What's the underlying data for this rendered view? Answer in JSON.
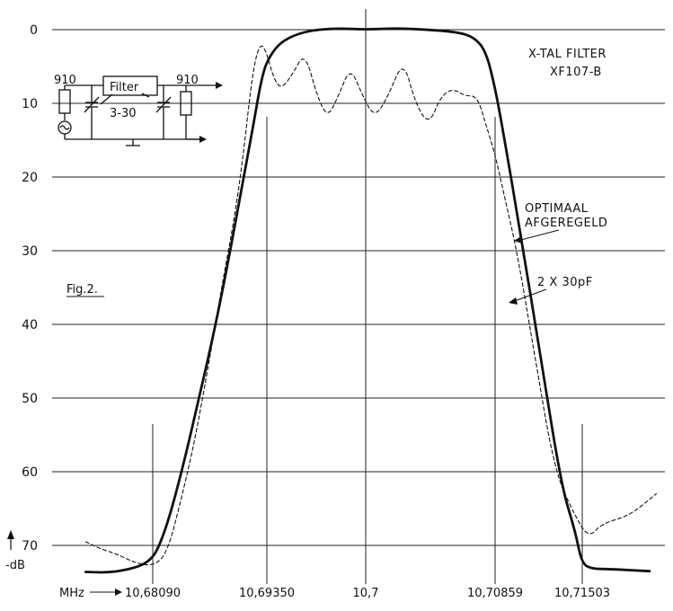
{
  "chart_data": {
    "type": "line",
    "title": "X-TAL FILTER",
    "subtitle": "XF107-B",
    "figure_label": "Fig.2.",
    "x_unit_label": "MHz",
    "y_unit_label": "-dB",
    "x_ticks": [
      {
        "value": 10.6809,
        "label": "10,68090"
      },
      {
        "value": 10.6935,
        "label": "10,69350"
      },
      {
        "value": 10.7,
        "label": "10,7"
      },
      {
        "value": 10.70859,
        "label": "10,70859"
      },
      {
        "value": 10.71503,
        "label": "10,71503"
      }
    ],
    "y_ticks": [
      {
        "value": 0,
        "label": "0"
      },
      {
        "value": 10,
        "label": "10"
      },
      {
        "value": 20,
        "label": "20"
      },
      {
        "value": 30,
        "label": "30"
      },
      {
        "value": 40,
        "label": "40"
      },
      {
        "value": 50,
        "label": "50"
      },
      {
        "value": 60,
        "label": "60"
      },
      {
        "value": 70,
        "label": "70"
      }
    ],
    "ylim": [
      0,
      73
    ],
    "y_inverted": true,
    "grid": true,
    "series": [
      {
        "name": "OPTIMAAL AFGEREGELD",
        "style": "solid",
        "x": [
          10.6735,
          10.676,
          10.678,
          10.6795,
          10.6806,
          10.6815,
          10.6828,
          10.6845,
          10.686,
          10.6875,
          10.689,
          10.6905,
          10.692,
          10.693,
          10.6937,
          10.6945,
          10.696,
          10.698,
          10.7,
          10.702,
          10.704,
          10.706,
          10.7072,
          10.708,
          10.7086,
          10.7092,
          10.7105,
          10.712,
          10.7135,
          10.7145,
          10.715,
          10.7158,
          10.717,
          10.72
        ],
        "y": [
          73.6,
          73.7,
          73.3,
          72.8,
          72,
          70.5,
          66,
          58,
          50,
          42,
          33,
          23,
          13,
          6,
          3.5,
          1.5,
          0.2,
          -0.2,
          0,
          -0.2,
          0,
          0.3,
          1,
          3,
          8,
          14,
          28,
          45,
          62,
          68,
          72.5,
          73.2,
          73.2,
          73.5
        ]
      },
      {
        "name": "2 X 30pF",
        "style": "dashed",
        "x": [
          10.6735,
          10.675,
          10.677,
          10.679,
          10.681,
          10.6825,
          10.684,
          10.6855,
          10.687,
          10.6885,
          10.69,
          10.691,
          10.6918,
          10.6925,
          10.6932,
          10.694,
          10.6945,
          10.6952,
          10.696,
          10.6968,
          10.6975,
          10.6982,
          10.699,
          10.6998,
          10.7006,
          10.7015,
          10.7025,
          10.7033,
          10.7042,
          10.705,
          10.7058,
          10.7066,
          10.7074,
          10.708,
          10.7086,
          10.7092,
          10.7102,
          10.7115,
          10.713,
          10.7145,
          10.7155,
          10.7165,
          10.7185,
          10.7205
        ],
        "y": [
          69.5,
          70.4,
          71.2,
          72.4,
          72.8,
          71,
          64,
          56,
          46,
          35,
          25,
          16,
          7,
          2.5,
          2,
          7,
          8,
          6,
          3,
          9,
          12,
          9,
          5,
          9,
          12,
          9,
          4,
          10,
          13,
          9,
          8,
          9,
          9,
          13,
          17,
          22,
          30,
          44,
          60,
          66,
          69,
          67,
          66,
          63
        ]
      }
    ],
    "annotations": [
      "OPTIMAAL",
      "AFGEREGELD",
      "2 X 30pF"
    ],
    "inset_circuit": {
      "filter_label": "Filter",
      "left_resistor": "910",
      "right_resistor": "910",
      "trimmer": "3-30"
    }
  }
}
